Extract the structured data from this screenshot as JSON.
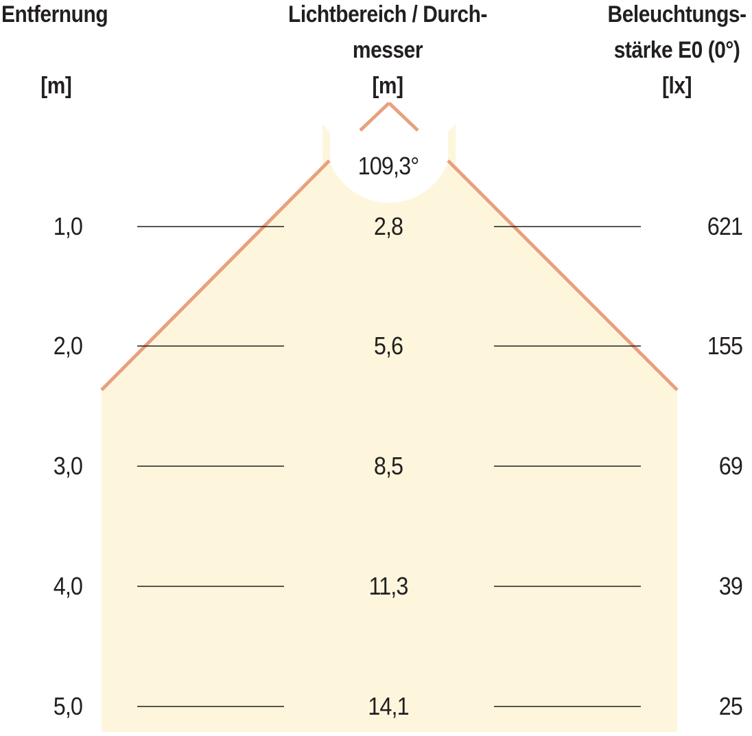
{
  "headers": {
    "left": {
      "line1": "Entfernung",
      "unit": "[m]"
    },
    "middle": {
      "line1": "Lichtbereich / Durch-",
      "line2": "messer",
      "unit": "[m]"
    },
    "right": {
      "line1": "Beleuchtungs-",
      "line2": "stärke E0 (0°)",
      "unit": "[lx]"
    }
  },
  "beam_angle": "109,3°",
  "rows": [
    {
      "distance": "1,0",
      "diameter": "2,8",
      "illuminance": "621"
    },
    {
      "distance": "2,0",
      "diameter": "5,6",
      "illuminance": "155"
    },
    {
      "distance": "3,0",
      "diameter": "8,5",
      "illuminance": "69"
    },
    {
      "distance": "4,0",
      "diameter": "11,3",
      "illuminance": "39"
    },
    {
      "distance": "5,0",
      "diameter": "14,1",
      "illuminance": "25"
    }
  ],
  "colors": {
    "beam_fill": "#fdf6dc",
    "beam_edge": "#e8a07e",
    "rule": "#231f20",
    "text": "#231f20"
  }
}
